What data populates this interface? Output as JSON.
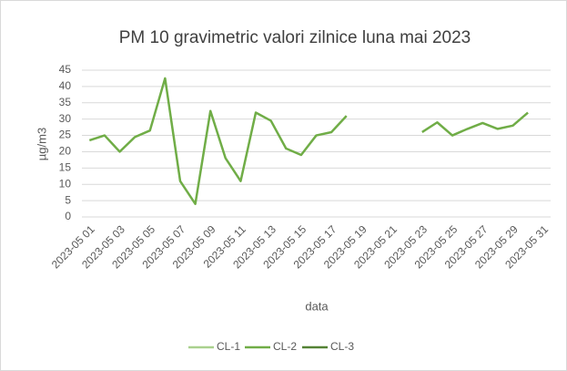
{
  "chart_data": {
    "type": "line",
    "title": "PM 10 gravimetric valori zilnice luna mai 2023",
    "y_label": "µg/m3",
    "x_label": "data",
    "categories": [
      "2023-05 01",
      null,
      "2023-05 03",
      null,
      "2023-05 05",
      null,
      "2023-05 07",
      null,
      "2023-05 09",
      null,
      "2023-05 11",
      null,
      "2023-05 13",
      null,
      "2023-05 15",
      null,
      "2023-05 17",
      null,
      "2023-05 19",
      null,
      "2023-05 21",
      null,
      "2023-05 23",
      null,
      "2023-05 25",
      null,
      "2023-05 27",
      null,
      "2023-05 29",
      null,
      "2023-05 31"
    ],
    "series": [
      {
        "name": "CL-1",
        "color": "#a9d18e",
        "values": [
          null,
          null,
          null,
          null,
          null,
          null,
          null,
          null,
          null,
          null,
          null,
          null,
          null,
          null,
          null,
          null,
          null,
          null,
          null,
          null,
          null,
          null,
          null,
          null,
          null,
          null,
          null,
          null,
          null,
          null,
          null
        ]
      },
      {
        "name": "CL-2",
        "color": "#70ad47",
        "values": [
          23.5,
          25,
          20,
          24.5,
          26.5,
          42.5,
          11,
          4,
          32.5,
          18,
          11,
          32,
          29.5,
          21,
          19,
          25,
          26,
          31,
          null,
          null,
          null,
          null,
          26,
          29,
          25,
          27,
          28.8,
          27,
          28,
          32,
          null
        ]
      },
      {
        "name": "CL-3",
        "color": "#548235",
        "values": [
          null,
          null,
          null,
          null,
          null,
          null,
          null,
          null,
          null,
          null,
          null,
          null,
          null,
          null,
          null,
          null,
          null,
          null,
          null,
          null,
          null,
          null,
          null,
          null,
          null,
          null,
          null,
          null,
          null,
          null,
          null
        ]
      }
    ],
    "ylim": [
      0,
      45
    ],
    "yticks": [
      0,
      5,
      10,
      15,
      20,
      25,
      30,
      35,
      40,
      45
    ],
    "grid": true,
    "legend": "bottom"
  }
}
